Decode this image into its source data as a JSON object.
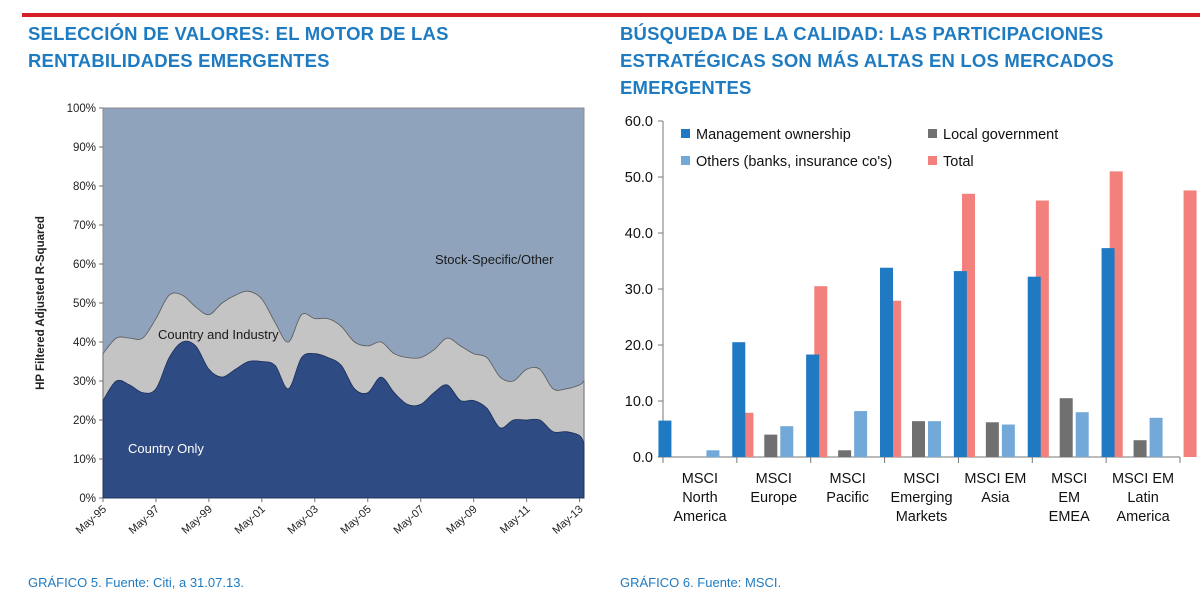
{
  "left_title": [
    "SELECCIÓN DE VALORES: EL MOTOR DE LAS",
    "RENTABILIDADES EMERGENTES"
  ],
  "right_title": [
    "BÚSQUEDA DE LA CALIDAD: LAS PARTICIPACIONES",
    "ESTRATÉGICAS SON MÁS ALTAS EN LOS MERCADOS",
    "EMERGENTES"
  ],
  "left_caption": "GRÁFICO 5. Fuente: Citi, a 31.07.13.",
  "right_caption": "GRÁFICO 6. Fuente: MSCI.",
  "colors": {
    "accent_rule": "#d41f26",
    "title": "#1f7bc1",
    "country_only": "#2e4b84",
    "country_industry": "#c4c4c4",
    "stock_specific": "#8fa3bd",
    "management": "#1f7ac3",
    "local_gov": "#707070",
    "others": "#72a9d9",
    "total": "#f2807d"
  },
  "chart_data": [
    {
      "type": "area",
      "ylabel": "HP Filtered Adjusted R-Squared",
      "ylim": [
        0,
        100
      ],
      "yticks": [
        "0%",
        "10%",
        "20%",
        "30%",
        "40%",
        "50%",
        "60%",
        "70%",
        "80%",
        "90%",
        "100%"
      ],
      "xticks": [
        "May-95",
        "May-97",
        "May-99",
        "May-01",
        "May-03",
        "May-05",
        "May-07",
        "May-09",
        "May-11",
        "May-13"
      ],
      "area_labels": [
        "Stock-Specific/Other",
        "Country and Industry",
        "Country Only"
      ],
      "grid": false,
      "series": [
        {
          "name": "Country Only",
          "x": [
            "May-95",
            "Nov-95",
            "May-96",
            "Nov-96",
            "May-97",
            "Nov-97",
            "May-98",
            "Nov-98",
            "May-99",
            "Nov-99",
            "May-00",
            "Nov-00",
            "May-01",
            "Nov-01",
            "May-02",
            "Nov-02",
            "May-03",
            "Nov-03",
            "May-04",
            "Nov-04",
            "May-05",
            "Nov-05",
            "May-06",
            "Nov-06",
            "May-07",
            "Nov-07",
            "May-08",
            "Nov-08",
            "May-09",
            "Nov-09",
            "May-10",
            "Nov-10",
            "May-11",
            "Nov-11",
            "May-12",
            "Nov-12",
            "May-13",
            "Jul-13"
          ],
          "values": [
            25,
            30,
            29,
            27,
            28,
            36,
            40,
            39,
            33,
            31,
            33,
            35,
            35,
            34,
            28,
            36,
            37,
            36,
            34,
            28,
            27,
            31,
            27,
            24,
            24,
            27,
            29,
            25,
            25,
            23,
            18,
            20,
            20,
            20,
            17,
            17,
            16,
            14
          ]
        },
        {
          "name": "Country and Industry",
          "x": [
            "May-95",
            "Nov-95",
            "May-96",
            "Nov-96",
            "May-97",
            "Nov-97",
            "May-98",
            "Nov-98",
            "May-99",
            "Nov-99",
            "May-00",
            "Nov-00",
            "May-01",
            "Nov-01",
            "May-02",
            "Nov-02",
            "May-03",
            "Nov-03",
            "May-04",
            "Nov-04",
            "May-05",
            "Nov-05",
            "May-06",
            "Nov-06",
            "May-07",
            "Nov-07",
            "May-08",
            "Nov-08",
            "May-09",
            "Nov-09",
            "May-10",
            "Nov-10",
            "May-11",
            "Nov-11",
            "May-12",
            "Nov-12",
            "May-13",
            "Jul-13"
          ],
          "values": [
            37,
            41,
            41,
            41,
            46,
            52,
            52,
            49,
            47,
            50,
            52,
            53,
            51,
            45,
            40,
            47,
            46,
            46,
            44,
            40,
            39,
            40,
            37,
            36,
            36,
            38,
            41,
            39,
            37,
            36,
            31,
            30,
            33,
            33,
            28,
            28,
            29,
            30
          ]
        },
        {
          "name": "Stock-Specific/Other",
          "x": [
            "May-95",
            "Jul-13"
          ],
          "values": [
            100,
            100
          ]
        }
      ]
    },
    {
      "type": "bar",
      "ylim": [
        0,
        60
      ],
      "yticks": [
        "0.0",
        "10.0",
        "20.0",
        "30.0",
        "40.0",
        "50.0",
        "60.0"
      ],
      "categories": [
        [
          "MSCI",
          "North",
          "America"
        ],
        [
          "MSCI",
          "Europe"
        ],
        [
          "MSCI",
          "Pacific"
        ],
        [
          "MSCI",
          "Emerging",
          "Markets"
        ],
        [
          "MSCI EM",
          "Asia"
        ],
        [
          "MSCI",
          "EM",
          "EMEA"
        ],
        [
          "MSCI EM",
          "Latin",
          "America"
        ]
      ],
      "legend": "top",
      "series": [
        {
          "name": "Management ownership",
          "values": [
            6.5,
            20.5,
            18.3,
            33.8,
            33.2,
            32.2,
            37.3
          ]
        },
        {
          "name": "Local government",
          "values": [
            0,
            4.0,
            1.2,
            6.4,
            6.2,
            10.5,
            3.0
          ]
        },
        {
          "name": "Others (banks, insurance co's)",
          "values": [
            1.2,
            5.5,
            8.2,
            6.4,
            5.8,
            8.0,
            7.0
          ]
        },
        {
          "name": "Total",
          "values": [
            7.9,
            30.5,
            27.9,
            47.0,
            45.8,
            51.0,
            47.6
          ]
        }
      ]
    }
  ]
}
